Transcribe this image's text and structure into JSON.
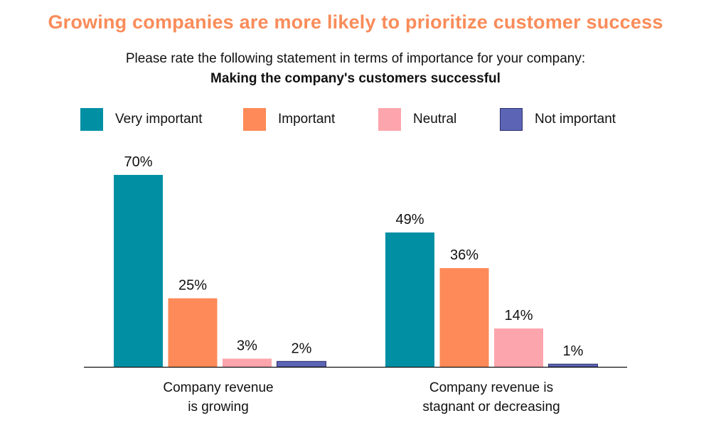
{
  "chart_data": {
    "type": "bar",
    "title": "Growing companies are more likely to prioritize customer success",
    "subtitle": "Please rate the following statement in terms of importance for your company:",
    "subtitle_bold": "Making the company's customers successful",
    "xlabel": "",
    "ylabel": "",
    "ylim": [
      0,
      70
    ],
    "grid": false,
    "legend_position": "top",
    "categories": [
      [
        "Company revenue",
        "is growing"
      ],
      [
        "Company revenue is",
        "stagnant or decreasing"
      ]
    ],
    "series": [
      {
        "name": "Very important",
        "color": "#008fa3",
        "values": [
          70,
          49
        ],
        "labels": [
          "70%",
          "49%"
        ]
      },
      {
        "name": "Important",
        "color": "#fd8a58",
        "values": [
          25,
          36
        ],
        "labels": [
          "25%",
          "36%"
        ]
      },
      {
        "name": "Neutral",
        "color": "#fda5ad",
        "values": [
          3,
          14
        ],
        "labels": [
          "3%",
          "14%"
        ]
      },
      {
        "name": "Not important",
        "color": "#5c65b5",
        "values": [
          2,
          1
        ],
        "labels": [
          "2%",
          "1%"
        ]
      }
    ]
  }
}
